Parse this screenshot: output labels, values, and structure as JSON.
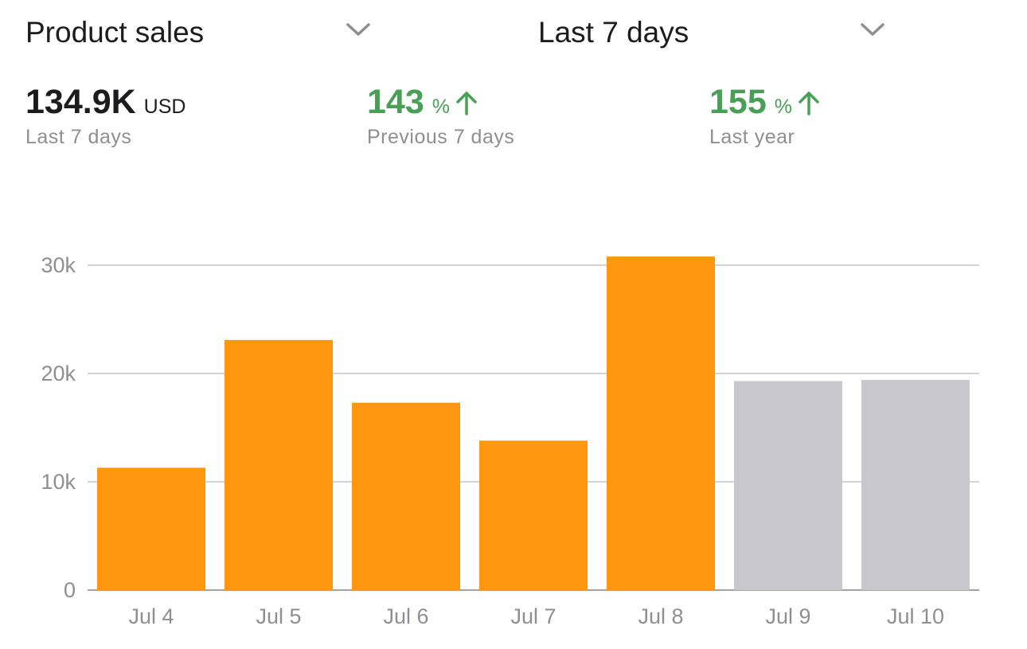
{
  "dropdowns": {
    "metric": {
      "label": "Product sales",
      "icon": "chevron-down-icon"
    },
    "range": {
      "label": "Last 7 days",
      "icon": "chevron-down-icon"
    }
  },
  "stats": {
    "total": {
      "value": "134.9K",
      "unit": "USD",
      "caption": "Last 7 days"
    },
    "previous": {
      "value": "143",
      "unit": "%",
      "caption": "Previous 7 days",
      "trend_icon": "arrow-up-icon"
    },
    "last_year": {
      "value": "155",
      "unit": "%",
      "caption": "Last year",
      "trend_icon": "arrow-up-icon"
    }
  },
  "colors": {
    "current": "#ff9810",
    "projected": "#c7c7cc",
    "positive": "#4a9f57",
    "grid": "#c6c6c8"
  },
  "chart_data": {
    "type": "bar",
    "categories": [
      "Jul 4",
      "Jul 5",
      "Jul 6",
      "Jul 7",
      "Jul 8",
      "Jul 9",
      "Jul 10"
    ],
    "values": [
      11300,
      23100,
      17300,
      13800,
      30800,
      19300,
      19400
    ],
    "bar_colors": [
      "#ff9810",
      "#ff9810",
      "#ff9810",
      "#ff9810",
      "#ff9810",
      "#c7c7cc",
      "#c7c7cc"
    ],
    "yticks": [
      0,
      10000,
      20000,
      30000
    ],
    "ytick_labels": [
      "0",
      "10k",
      "20k",
      "30k"
    ],
    "ylim": [
      0,
      30000
    ],
    "grid": true,
    "title": "",
    "xlabel": "",
    "ylabel": ""
  }
}
